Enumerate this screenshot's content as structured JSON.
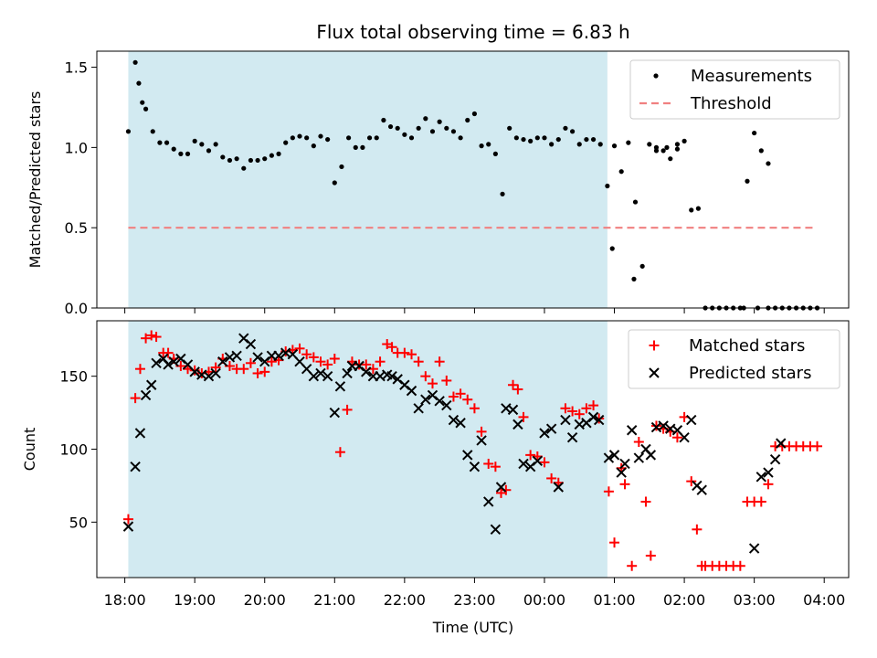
{
  "figure": {
    "title": "Flux total observing time = 6.83 h",
    "xlabel": "Time (UTC)",
    "x_unit": "hours",
    "x_range": [
      17.6,
      28.35
    ],
    "x_ticks": [
      {
        "v": 18,
        "label": "18:00"
      },
      {
        "v": 19,
        "label": "19:00"
      },
      {
        "v": 20,
        "label": "20:00"
      },
      {
        "v": 21,
        "label": "21:00"
      },
      {
        "v": 22,
        "label": "22:00"
      },
      {
        "v": 23,
        "label": "23:00"
      },
      {
        "v": 24,
        "label": "00:00"
      },
      {
        "v": 25,
        "label": "01:00"
      },
      {
        "v": 26,
        "label": "02:00"
      },
      {
        "v": 27,
        "label": "03:00"
      },
      {
        "v": 28,
        "label": "04:00"
      }
    ],
    "shaded_span": [
      18.05,
      24.9
    ],
    "colors": {
      "shade": "#add8e6",
      "measure": "#000000",
      "threshold": "#f08080",
      "matched": "#ff0000",
      "predicted": "#000000"
    }
  },
  "chart_data": [
    {
      "type": "scatter",
      "ylabel": "Matched/Predicted stars",
      "ylim": [
        0,
        1.6
      ],
      "y_ticks": [
        {
          "v": 0,
          "label": "0.0"
        },
        {
          "v": 0.5,
          "label": "0.5"
        },
        {
          "v": 1.0,
          "label": "1.0"
        },
        {
          "v": 1.5,
          "label": "1.5"
        }
      ],
      "legend_location": "upper right",
      "series": [
        {
          "name": "Measurements",
          "style": "dot",
          "x": [
            18.05,
            18.15,
            18.2,
            18.25,
            18.3,
            18.4,
            18.5,
            18.6,
            18.7,
            18.8,
            18.9,
            19.0,
            19.1,
            19.2,
            19.3,
            19.4,
            19.5,
            19.6,
            19.7,
            19.8,
            19.9,
            20.0,
            20.1,
            20.2,
            20.3,
            20.4,
            20.5,
            20.6,
            20.7,
            20.8,
            20.9,
            21.0,
            21.1,
            21.2,
            21.3,
            21.4,
            21.5,
            21.6,
            21.7,
            21.8,
            21.9,
            22.0,
            22.1,
            22.2,
            22.3,
            22.4,
            22.5,
            22.6,
            22.7,
            22.8,
            22.9,
            23.0,
            23.1,
            23.2,
            23.3,
            23.4,
            23.5,
            23.6,
            23.7,
            23.8,
            23.9,
            24.0,
            24.1,
            24.2,
            24.3,
            24.4,
            24.5,
            24.6,
            24.7,
            24.8,
            24.9,
            25.0,
            25.1,
            25.2,
            25.3,
            25.4,
            25.5,
            25.6,
            25.7,
            25.8,
            25.9,
            26.0,
            26.1,
            26.2,
            26.3,
            26.4,
            26.5,
            26.6,
            26.7,
            26.8,
            26.9,
            27.0,
            27.1,
            27.2,
            27.3,
            27.4,
            27.5,
            27.6,
            27.7,
            27.8,
            27.9
          ],
          "y": [
            1.1,
            1.53,
            1.4,
            1.28,
            1.24,
            1.1,
            1.03,
            1.03,
            0.99,
            0.96,
            0.96,
            1.04,
            1.02,
            0.98,
            1.02,
            0.94,
            0.92,
            0.93,
            0.87,
            0.92,
            0.92,
            0.93,
            0.95,
            0.96,
            1.03,
            1.06,
            1.07,
            1.06,
            1.01,
            1.07,
            1.05,
            0.78,
            0.88,
            1.06,
            1.0,
            1.0,
            1.06,
            1.06,
            1.17,
            1.13,
            1.12,
            1.08,
            1.06,
            1.12,
            1.18,
            1.1,
            1.16,
            1.12,
            1.1,
            1.06,
            1.17,
            1.21,
            1.01,
            1.02,
            0.96,
            0.71,
            1.12,
            1.06,
            1.05,
            1.04,
            1.06,
            1.06,
            1.02,
            1.05,
            1.12,
            1.1,
            1.02,
            1.05,
            1.05,
            1.02,
            0.76,
            1.01,
            0.85,
            1.03,
            0.66,
            0.26,
            1.02,
            1.0,
            0.98,
            0.93,
            1.02,
            1.04,
            0.61,
            0.62,
            0.0,
            0.0,
            0.0,
            0.0,
            0.0,
            0.0,
            0.79,
            1.09,
            0.98,
            0.0,
            0.0,
            0.0,
            0.0,
            0.0,
            0.0,
            0.0,
            0.0
          ],
          "extra_points": [
            [
              24.97,
              0.37
            ],
            [
              25.28,
              0.18
            ],
            [
              25.6,
              0.98
            ],
            [
              25.75,
              1.0
            ],
            [
              25.9,
              0.99
            ],
            [
              27.2,
              0.9
            ],
            [
              26.85,
              0.0
            ],
            [
              27.05,
              0.0
            ]
          ]
        },
        {
          "name": "Threshold",
          "style": "dashed-line",
          "x": [
            18.05,
            27.85
          ],
          "y": [
            0.5,
            0.5
          ]
        }
      ]
    },
    {
      "type": "scatter",
      "ylabel": "Count",
      "ylim": [
        12,
        188
      ],
      "y_ticks": [
        {
          "v": 50,
          "label": "50"
        },
        {
          "v": 100,
          "label": "100"
        },
        {
          "v": 150,
          "label": "150"
        }
      ],
      "legend_location": "upper right",
      "series": [
        {
          "name": "Matched stars",
          "style": "plus",
          "x": [
            18.05,
            18.15,
            18.22,
            18.3,
            18.38,
            18.45,
            18.55,
            18.62,
            18.7,
            18.8,
            18.9,
            19.0,
            19.1,
            19.2,
            19.3,
            19.4,
            19.5,
            19.6,
            19.7,
            19.8,
            19.9,
            20.0,
            20.1,
            20.2,
            20.3,
            20.4,
            20.5,
            20.6,
            20.7,
            20.8,
            20.9,
            21.0,
            21.08,
            21.18,
            21.25,
            21.35,
            21.45,
            21.55,
            21.65,
            21.75,
            21.82,
            21.9,
            22.0,
            22.1,
            22.2,
            22.3,
            22.4,
            22.5,
            22.6,
            22.7,
            22.8,
            22.9,
            23.0,
            23.1,
            23.2,
            23.3,
            23.38,
            23.45,
            23.55,
            23.62,
            23.7,
            23.8,
            23.9,
            24.0,
            24.1,
            24.2,
            24.3,
            24.4,
            24.5,
            24.6,
            24.7,
            24.78,
            24.92,
            25.0,
            25.1,
            25.15,
            25.25,
            25.35,
            25.45,
            25.52,
            25.6,
            25.7,
            25.8,
            25.9,
            26.0,
            26.1,
            26.18,
            26.25,
            26.3,
            26.4,
            26.5,
            26.6,
            26.7,
            26.8,
            26.9,
            27.0,
            27.1,
            27.2,
            27.3,
            27.4,
            27.5,
            27.6,
            27.7,
            27.8,
            27.9
          ],
          "y": [
            52,
            135,
            155,
            176,
            178,
            177,
            166,
            166,
            162,
            157,
            155,
            154,
            152,
            153,
            156,
            162,
            157,
            155,
            155,
            159,
            152,
            153,
            160,
            161,
            167,
            168,
            169,
            165,
            163,
            160,
            158,
            162,
            98,
            127,
            160,
            158,
            158,
            155,
            160,
            172,
            170,
            166,
            166,
            165,
            160,
            150,
            145,
            160,
            147,
            136,
            138,
            134,
            128,
            112,
            90,
            88,
            70,
            72,
            144,
            141,
            122,
            96,
            95,
            91,
            80,
            77,
            128,
            126,
            124,
            128,
            130,
            121,
            71,
            36,
            87,
            76,
            20,
            105,
            64,
            27,
            116,
            114,
            112,
            108,
            122,
            78,
            45,
            20,
            20,
            20,
            20,
            20,
            20,
            20,
            64,
            64,
            64,
            76,
            102,
            102,
            102,
            102,
            102,
            102,
            102
          ]
        },
        {
          "name": "Predicted stars",
          "style": "cross",
          "x": [
            18.05,
            18.15,
            18.22,
            18.3,
            18.38,
            18.45,
            18.55,
            18.62,
            18.7,
            18.8,
            18.9,
            19.0,
            19.1,
            19.2,
            19.3,
            19.4,
            19.5,
            19.6,
            19.7,
            19.8,
            19.9,
            20.0,
            20.1,
            20.2,
            20.3,
            20.4,
            20.5,
            20.6,
            20.7,
            20.8,
            20.9,
            21.0,
            21.08,
            21.18,
            21.25,
            21.35,
            21.45,
            21.55,
            21.65,
            21.75,
            21.82,
            21.9,
            22.0,
            22.1,
            22.2,
            22.3,
            22.4,
            22.5,
            22.6,
            22.7,
            22.8,
            22.9,
            23.0,
            23.1,
            23.2,
            23.3,
            23.38,
            23.45,
            23.55,
            23.62,
            23.7,
            23.8,
            23.9,
            24.0,
            24.1,
            24.2,
            24.3,
            24.4,
            24.5,
            24.6,
            24.7,
            24.78,
            24.92,
            25.0,
            25.1,
            25.15,
            25.25,
            25.35,
            25.45,
            25.52,
            25.6,
            25.7,
            25.8,
            25.9,
            26.0,
            26.1,
            26.18,
            26.25,
            27.0,
            27.1,
            27.2,
            27.3,
            27.38
          ],
          "y": [
            47,
            88,
            111,
            137,
            144,
            159,
            162,
            158,
            160,
            162,
            158,
            153,
            151,
            150,
            152,
            160,
            163,
            164,
            176,
            172,
            163,
            160,
            164,
            164,
            166,
            165,
            160,
            155,
            150,
            152,
            150,
            125,
            143,
            152,
            157,
            157,
            153,
            150,
            150,
            151,
            150,
            148,
            144,
            140,
            128,
            134,
            137,
            133,
            130,
            120,
            118,
            96,
            88,
            106,
            64,
            45,
            74,
            128,
            127,
            117,
            90,
            88,
            92,
            111,
            114,
            74,
            120,
            108,
            117,
            118,
            122,
            120,
            94,
            96,
            84,
            90,
            113,
            94,
            100,
            96,
            115,
            116,
            114,
            113,
            108,
            120,
            75,
            72,
            32,
            81,
            84,
            93,
            104
          ]
        }
      ]
    }
  ]
}
